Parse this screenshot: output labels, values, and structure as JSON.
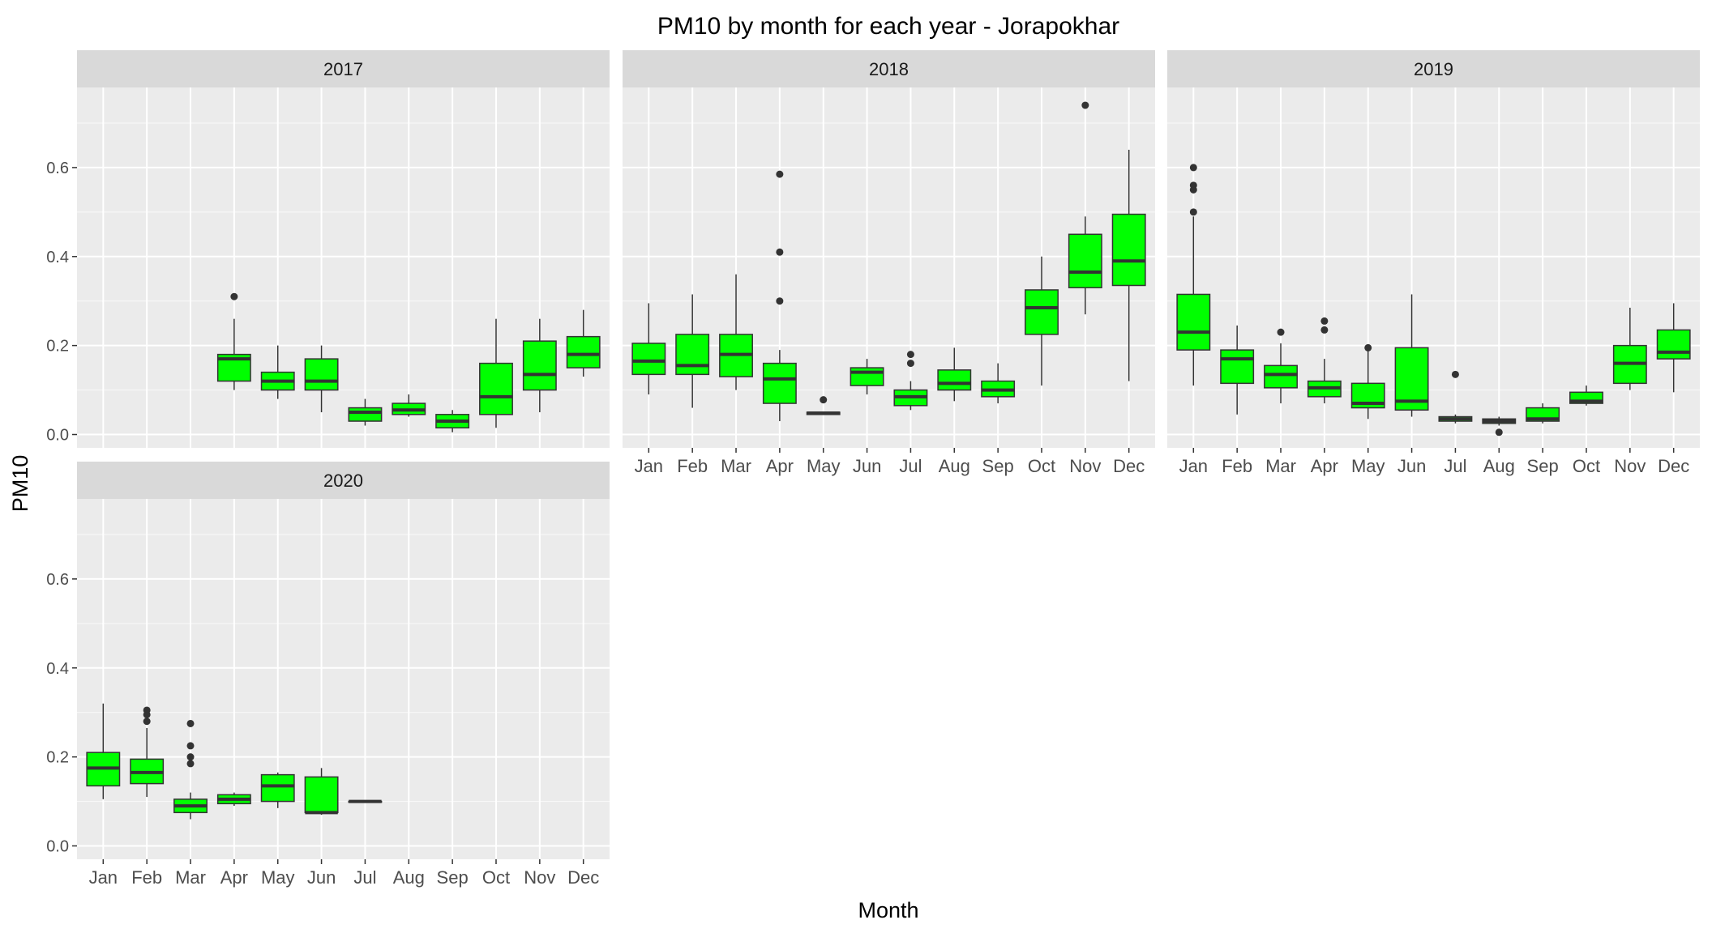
{
  "chart_data": {
    "type": "boxplot",
    "title": "PM10 by month for each year - Jorapokhar",
    "xlabel": "Month",
    "ylabel": "PM10",
    "ylim": [
      -0.03,
      0.78
    ],
    "yticks": [
      0.0,
      0.2,
      0.4,
      0.6
    ],
    "ytick_labels": [
      "0.0",
      "0.2",
      "0.4",
      "0.6"
    ],
    "categories": [
      "Jan",
      "Feb",
      "Mar",
      "Apr",
      "May",
      "Jun",
      "Jul",
      "Aug",
      "Sep",
      "Oct",
      "Nov",
      "Dec"
    ],
    "grid": true,
    "facet_layout": "3 columns, 2 rows",
    "colors": {
      "box_fill": "#00ff00",
      "box_stroke": "#333333",
      "panel_bg": "#ebebeb",
      "strip_bg": "#d9d9d9",
      "grid": "#ffffff"
    },
    "panels": [
      {
        "label": "2017",
        "boxes": [
          {
            "month": "Apr",
            "min": 0.1,
            "q1": 0.12,
            "median": 0.17,
            "q3": 0.18,
            "max": 0.26,
            "outliers": [
              0.31
            ]
          },
          {
            "month": "May",
            "min": 0.08,
            "q1": 0.1,
            "median": 0.12,
            "q3": 0.14,
            "max": 0.2,
            "outliers": []
          },
          {
            "month": "Jun",
            "min": 0.05,
            "q1": 0.1,
            "median": 0.12,
            "q3": 0.17,
            "max": 0.2,
            "outliers": []
          },
          {
            "month": "Jul",
            "min": 0.02,
            "q1": 0.03,
            "median": 0.05,
            "q3": 0.06,
            "max": 0.08,
            "outliers": []
          },
          {
            "month": "Aug",
            "min": 0.04,
            "q1": 0.045,
            "median": 0.055,
            "q3": 0.07,
            "max": 0.09,
            "outliers": []
          },
          {
            "month": "Sep",
            "min": 0.005,
            "q1": 0.015,
            "median": 0.03,
            "q3": 0.045,
            "max": 0.055,
            "outliers": []
          },
          {
            "month": "Oct",
            "min": 0.015,
            "q1": 0.045,
            "median": 0.085,
            "q3": 0.16,
            "max": 0.26,
            "outliers": []
          },
          {
            "month": "Nov",
            "min": 0.05,
            "q1": 0.1,
            "median": 0.135,
            "q3": 0.21,
            "max": 0.26,
            "outliers": []
          },
          {
            "month": "Dec",
            "min": 0.13,
            "q1": 0.15,
            "median": 0.18,
            "q3": 0.22,
            "max": 0.28,
            "outliers": []
          }
        ]
      },
      {
        "label": "2018",
        "boxes": [
          {
            "month": "Jan",
            "min": 0.09,
            "q1": 0.135,
            "median": 0.165,
            "q3": 0.205,
            "max": 0.295,
            "outliers": []
          },
          {
            "month": "Feb",
            "min": 0.06,
            "q1": 0.135,
            "median": 0.155,
            "q3": 0.225,
            "max": 0.315,
            "outliers": []
          },
          {
            "month": "Mar",
            "min": 0.1,
            "q1": 0.13,
            "median": 0.18,
            "q3": 0.225,
            "max": 0.36,
            "outliers": []
          },
          {
            "month": "Apr",
            "min": 0.03,
            "q1": 0.07,
            "median": 0.125,
            "q3": 0.16,
            "max": 0.19,
            "outliers": [
              0.3,
              0.41,
              0.585
            ]
          },
          {
            "month": "May",
            "min": 0.045,
            "q1": 0.045,
            "median": 0.048,
            "q3": 0.05,
            "max": 0.05,
            "outliers": [
              0.078
            ]
          },
          {
            "month": "Jun",
            "min": 0.09,
            "q1": 0.11,
            "median": 0.14,
            "q3": 0.15,
            "max": 0.17,
            "outliers": []
          },
          {
            "month": "Jul",
            "min": 0.055,
            "q1": 0.065,
            "median": 0.085,
            "q3": 0.1,
            "max": 0.12,
            "outliers": [
              0.16,
              0.18
            ]
          },
          {
            "month": "Aug",
            "min": 0.075,
            "q1": 0.1,
            "median": 0.115,
            "q3": 0.145,
            "max": 0.195,
            "outliers": []
          },
          {
            "month": "Sep",
            "min": 0.07,
            "q1": 0.085,
            "median": 0.1,
            "q3": 0.12,
            "max": 0.16,
            "outliers": []
          },
          {
            "month": "Oct",
            "min": 0.11,
            "q1": 0.225,
            "median": 0.285,
            "q3": 0.325,
            "max": 0.4,
            "outliers": []
          },
          {
            "month": "Nov",
            "min": 0.27,
            "q1": 0.33,
            "median": 0.365,
            "q3": 0.45,
            "max": 0.49,
            "outliers": [
              0.74
            ]
          },
          {
            "month": "Dec",
            "min": 0.12,
            "q1": 0.335,
            "median": 0.39,
            "q3": 0.495,
            "max": 0.64,
            "outliers": []
          }
        ]
      },
      {
        "label": "2019",
        "boxes": [
          {
            "month": "Jan",
            "min": 0.11,
            "q1": 0.19,
            "median": 0.23,
            "q3": 0.315,
            "max": 0.49,
            "outliers": [
              0.5,
              0.55,
              0.56,
              0.6
            ]
          },
          {
            "month": "Feb",
            "min": 0.045,
            "q1": 0.115,
            "median": 0.17,
            "q3": 0.19,
            "max": 0.245,
            "outliers": []
          },
          {
            "month": "Mar",
            "min": 0.07,
            "q1": 0.105,
            "median": 0.135,
            "q3": 0.155,
            "max": 0.205,
            "outliers": [
              0.23
            ]
          },
          {
            "month": "Apr",
            "min": 0.07,
            "q1": 0.085,
            "median": 0.105,
            "q3": 0.12,
            "max": 0.17,
            "outliers": [
              0.235,
              0.255
            ]
          },
          {
            "month": "May",
            "min": 0.035,
            "q1": 0.06,
            "median": 0.07,
            "q3": 0.115,
            "max": 0.19,
            "outliers": [
              0.195
            ]
          },
          {
            "month": "Jun",
            "min": 0.04,
            "q1": 0.055,
            "median": 0.075,
            "q3": 0.195,
            "max": 0.315,
            "outliers": []
          },
          {
            "month": "Jul",
            "min": 0.025,
            "q1": 0.03,
            "median": 0.035,
            "q3": 0.04,
            "max": 0.045,
            "outliers": [
              0.135
            ]
          },
          {
            "month": "Aug",
            "min": 0.02,
            "q1": 0.025,
            "median": 0.03,
            "q3": 0.035,
            "max": 0.04,
            "outliers": [
              0.005
            ]
          },
          {
            "month": "Sep",
            "min": 0.025,
            "q1": 0.03,
            "median": 0.035,
            "q3": 0.06,
            "max": 0.07,
            "outliers": []
          },
          {
            "month": "Oct",
            "min": 0.065,
            "q1": 0.07,
            "median": 0.075,
            "q3": 0.095,
            "max": 0.11,
            "outliers": []
          },
          {
            "month": "Nov",
            "min": 0.1,
            "q1": 0.115,
            "median": 0.16,
            "q3": 0.2,
            "max": 0.285,
            "outliers": []
          },
          {
            "month": "Dec",
            "min": 0.095,
            "q1": 0.17,
            "median": 0.185,
            "q3": 0.235,
            "max": 0.295,
            "outliers": []
          }
        ]
      },
      {
        "label": "2020",
        "boxes": [
          {
            "month": "Jan",
            "min": 0.105,
            "q1": 0.135,
            "median": 0.175,
            "q3": 0.21,
            "max": 0.32,
            "outliers": []
          },
          {
            "month": "Feb",
            "min": 0.11,
            "q1": 0.14,
            "median": 0.165,
            "q3": 0.195,
            "max": 0.265,
            "outliers": [
              0.28,
              0.295,
              0.305
            ]
          },
          {
            "month": "Mar",
            "min": 0.06,
            "q1": 0.075,
            "median": 0.09,
            "q3": 0.105,
            "max": 0.12,
            "outliers": [
              0.185,
              0.2,
              0.225,
              0.275
            ]
          },
          {
            "month": "Apr",
            "min": 0.09,
            "q1": 0.095,
            "median": 0.105,
            "q3": 0.115,
            "max": 0.12,
            "outliers": []
          },
          {
            "month": "May",
            "min": 0.085,
            "q1": 0.1,
            "median": 0.135,
            "q3": 0.16,
            "max": 0.165,
            "outliers": []
          },
          {
            "month": "Jun",
            "min": 0.07,
            "q1": 0.075,
            "median": 0.075,
            "q3": 0.155,
            "max": 0.175,
            "outliers": []
          },
          {
            "month": "Jul",
            "min": 0.1,
            "q1": 0.1,
            "median": 0.1,
            "q3": 0.1,
            "max": 0.1,
            "outliers": []
          }
        ]
      }
    ]
  }
}
